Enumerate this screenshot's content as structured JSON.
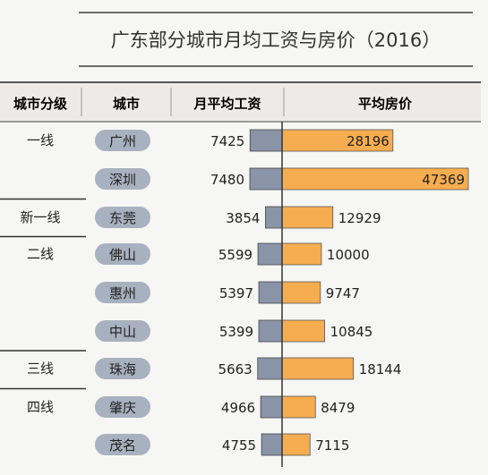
{
  "title": "广东部分城市月均工资与房价（2016）",
  "headers": {
    "tier": "城市分级",
    "city": "城市",
    "salary": "月平均工资",
    "price": "平均房价"
  },
  "colors": {
    "salary_bar": "#8a94a8",
    "price_bar": "#f5ad4f",
    "city_pill": "#a8b1bf",
    "header_bg": "#eceae6"
  },
  "chart_data": {
    "type": "bar",
    "title": "广东部分城市月均工资与房价（2016）",
    "categories": [
      "广州",
      "深圳",
      "东莞",
      "佛山",
      "惠州",
      "中山",
      "珠海",
      "肇庆",
      "茂名"
    ],
    "tiers": [
      "一线",
      "一线",
      "新一线",
      "二线",
      "二线",
      "二线",
      "三线",
      "四线",
      "四线"
    ],
    "series": [
      {
        "name": "月平均工资",
        "values": [
          7425,
          7480,
          3854,
          5599,
          5397,
          5399,
          5663,
          4966,
          4755
        ]
      },
      {
        "name": "平均房价",
        "values": [
          28196,
          47369,
          12929,
          10000,
          9747,
          10845,
          18144,
          8479,
          7115
        ]
      }
    ]
  }
}
